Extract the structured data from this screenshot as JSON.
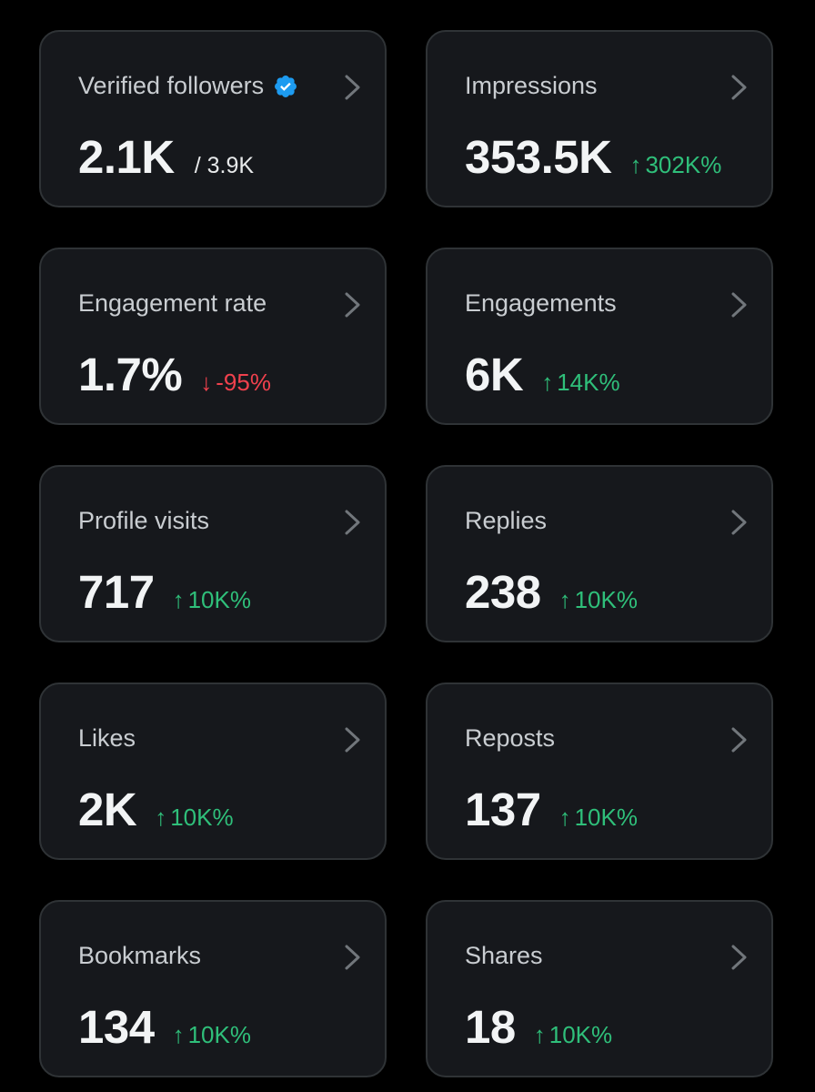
{
  "cards": [
    {
      "label": "Verified followers",
      "value": "2.1K",
      "sub": "/ 3.9K",
      "verified": true
    },
    {
      "label": "Impressions",
      "value": "353.5K",
      "change": "302K%",
      "direction": "up",
      "arrow": "↑"
    },
    {
      "label": "Engagement rate",
      "value": "1.7%",
      "change": "-95%",
      "direction": "down",
      "arrow": "↓"
    },
    {
      "label": "Engagements",
      "value": "6K",
      "change": "14K%",
      "direction": "up",
      "arrow": "↑"
    },
    {
      "label": "Profile visits",
      "value": "717",
      "change": "10K%",
      "direction": "up",
      "arrow": "↑"
    },
    {
      "label": "Replies",
      "value": "238",
      "change": "10K%",
      "direction": "up",
      "arrow": "↑"
    },
    {
      "label": "Likes",
      "value": "2K",
      "change": "10K%",
      "direction": "up",
      "arrow": "↑"
    },
    {
      "label": "Reposts",
      "value": "137",
      "change": "10K%",
      "direction": "up",
      "arrow": "↑"
    },
    {
      "label": "Bookmarks",
      "value": "134",
      "change": "10K%",
      "direction": "up",
      "arrow": "↑"
    },
    {
      "label": "Shares",
      "value": "18",
      "change": "10K%",
      "direction": "up",
      "arrow": "↑"
    }
  ],
  "colors": {
    "background": "#000000",
    "card": "#16181c",
    "border": "#2f3336",
    "up": "#2fbf7a",
    "down": "#f0414d",
    "verified": "#1d9bf0"
  }
}
